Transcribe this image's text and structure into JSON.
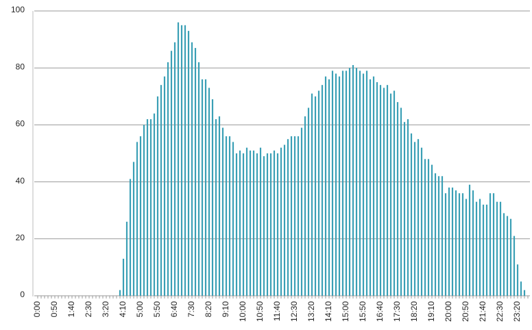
{
  "chart_data": {
    "type": "bar",
    "categories": [
      "0:00",
      null,
      null,
      null,
      null,
      "0:50",
      null,
      null,
      null,
      null,
      "1:40",
      null,
      null,
      null,
      null,
      "2:30",
      null,
      null,
      null,
      null,
      "3:20",
      null,
      null,
      null,
      null,
      "4:10",
      null,
      null,
      null,
      null,
      "5:00",
      null,
      null,
      null,
      null,
      "5:50",
      null,
      null,
      null,
      null,
      "6:40",
      null,
      null,
      null,
      null,
      "7:30",
      null,
      null,
      null,
      null,
      "8:20",
      null,
      null,
      null,
      null,
      "9:10",
      null,
      null,
      null,
      null,
      "10:00",
      null,
      null,
      null,
      null,
      "10:50",
      null,
      null,
      null,
      null,
      "11:40",
      null,
      null,
      null,
      null,
      "12:30",
      null,
      null,
      null,
      null,
      "13:20",
      null,
      null,
      null,
      null,
      "14:10",
      null,
      null,
      null,
      null,
      "15:00",
      null,
      null,
      null,
      null,
      "15:50",
      null,
      null,
      null,
      null,
      "16:40",
      null,
      null,
      null,
      null,
      "17:30",
      null,
      null,
      null,
      null,
      "18:20",
      null,
      null,
      null,
      null,
      "19:10",
      null,
      null,
      null,
      null,
      "20:00",
      null,
      null,
      null,
      null,
      "20:50",
      null,
      null,
      null,
      null,
      "21:40",
      null,
      null,
      null,
      null,
      "22:30",
      null,
      null,
      null,
      null,
      "23:20",
      null,
      null,
      null
    ],
    "values": [
      0,
      0,
      0,
      0,
      0,
      0,
      0,
      0,
      0,
      0,
      0,
      0,
      0,
      0,
      0,
      0,
      0,
      0,
      0,
      0,
      0,
      0,
      0,
      0,
      2,
      13,
      26,
      41,
      47,
      54,
      56,
      60,
      62,
      62,
      64,
      70,
      74,
      77,
      82,
      86,
      89,
      96,
      95,
      95,
      93,
      89,
      87,
      82,
      76,
      76,
      73,
      69,
      62,
      63,
      59,
      56,
      56,
      54,
      50,
      51,
      50,
      52,
      51,
      51,
      50,
      52,
      49,
      50,
      50,
      51,
      50,
      52,
      53,
      55,
      56,
      56,
      56,
      59,
      63,
      66,
      71,
      70,
      72,
      74,
      77,
      76,
      79,
      78,
      77,
      79,
      79,
      80,
      81,
      80,
      79,
      78,
      79,
      76,
      77,
      75,
      74,
      73,
      74,
      71,
      72,
      68,
      66,
      61,
      62,
      57,
      54,
      55,
      52,
      48,
      48,
      46,
      43,
      42,
      42,
      36,
      38,
      38,
      37,
      36,
      36,
      34,
      39,
      37,
      33,
      34,
      32,
      32,
      36,
      36,
      33,
      33,
      29,
      28,
      27,
      21,
      11,
      5,
      2,
      0
    ],
    "color": "#3a9fb5",
    "ylim": [
      0,
      100
    ],
    "yticks": [
      0,
      20,
      40,
      60,
      80,
      100
    ],
    "grid": true
  }
}
